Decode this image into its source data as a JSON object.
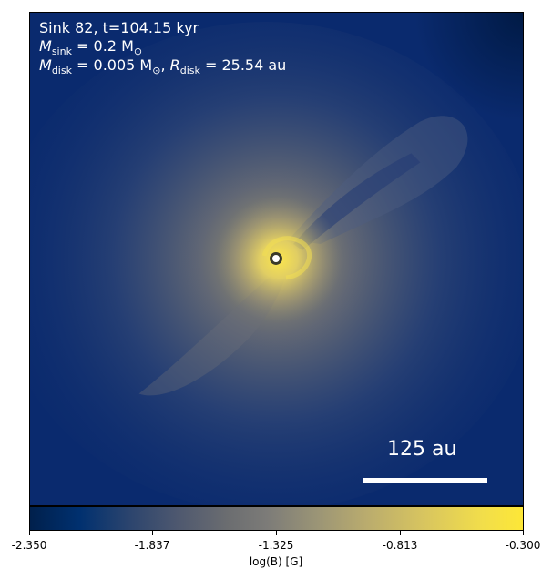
{
  "info": {
    "line1": "Sink 82, t=104.15 kyr",
    "m_sink_symbol": "M",
    "m_sink_sub": "sink",
    "m_sink_value": " = 0.2 M",
    "m_sink_unit_sub": "⊙",
    "m_disk_symbol": "M",
    "m_disk_sub": "disk",
    "m_disk_value": " = 0.005 M",
    "m_disk_unit_sub": "⊙",
    "r_disk_prefix": ", ",
    "r_disk_symbol": "R",
    "r_disk_sub": "disk",
    "r_disk_value": " = 25.54 au"
  },
  "scale_bar": {
    "label": "125 au"
  },
  "colorbar": {
    "ticks": [
      "-2.350",
      "-1.837",
      "-1.325",
      "-0.813",
      "-0.300"
    ],
    "label": "log(B) [G]",
    "colormap_colors": [
      "#00204c",
      "#2b446e",
      "#7c7b78",
      "#b9ab6e",
      "#fde737"
    ]
  },
  "colors": {
    "background_field": "#0a2a6e",
    "peak_field": "#fde737",
    "sink_marker_fill": "#ffffff",
    "sink_marker_edge": "#3a3a2a"
  }
}
